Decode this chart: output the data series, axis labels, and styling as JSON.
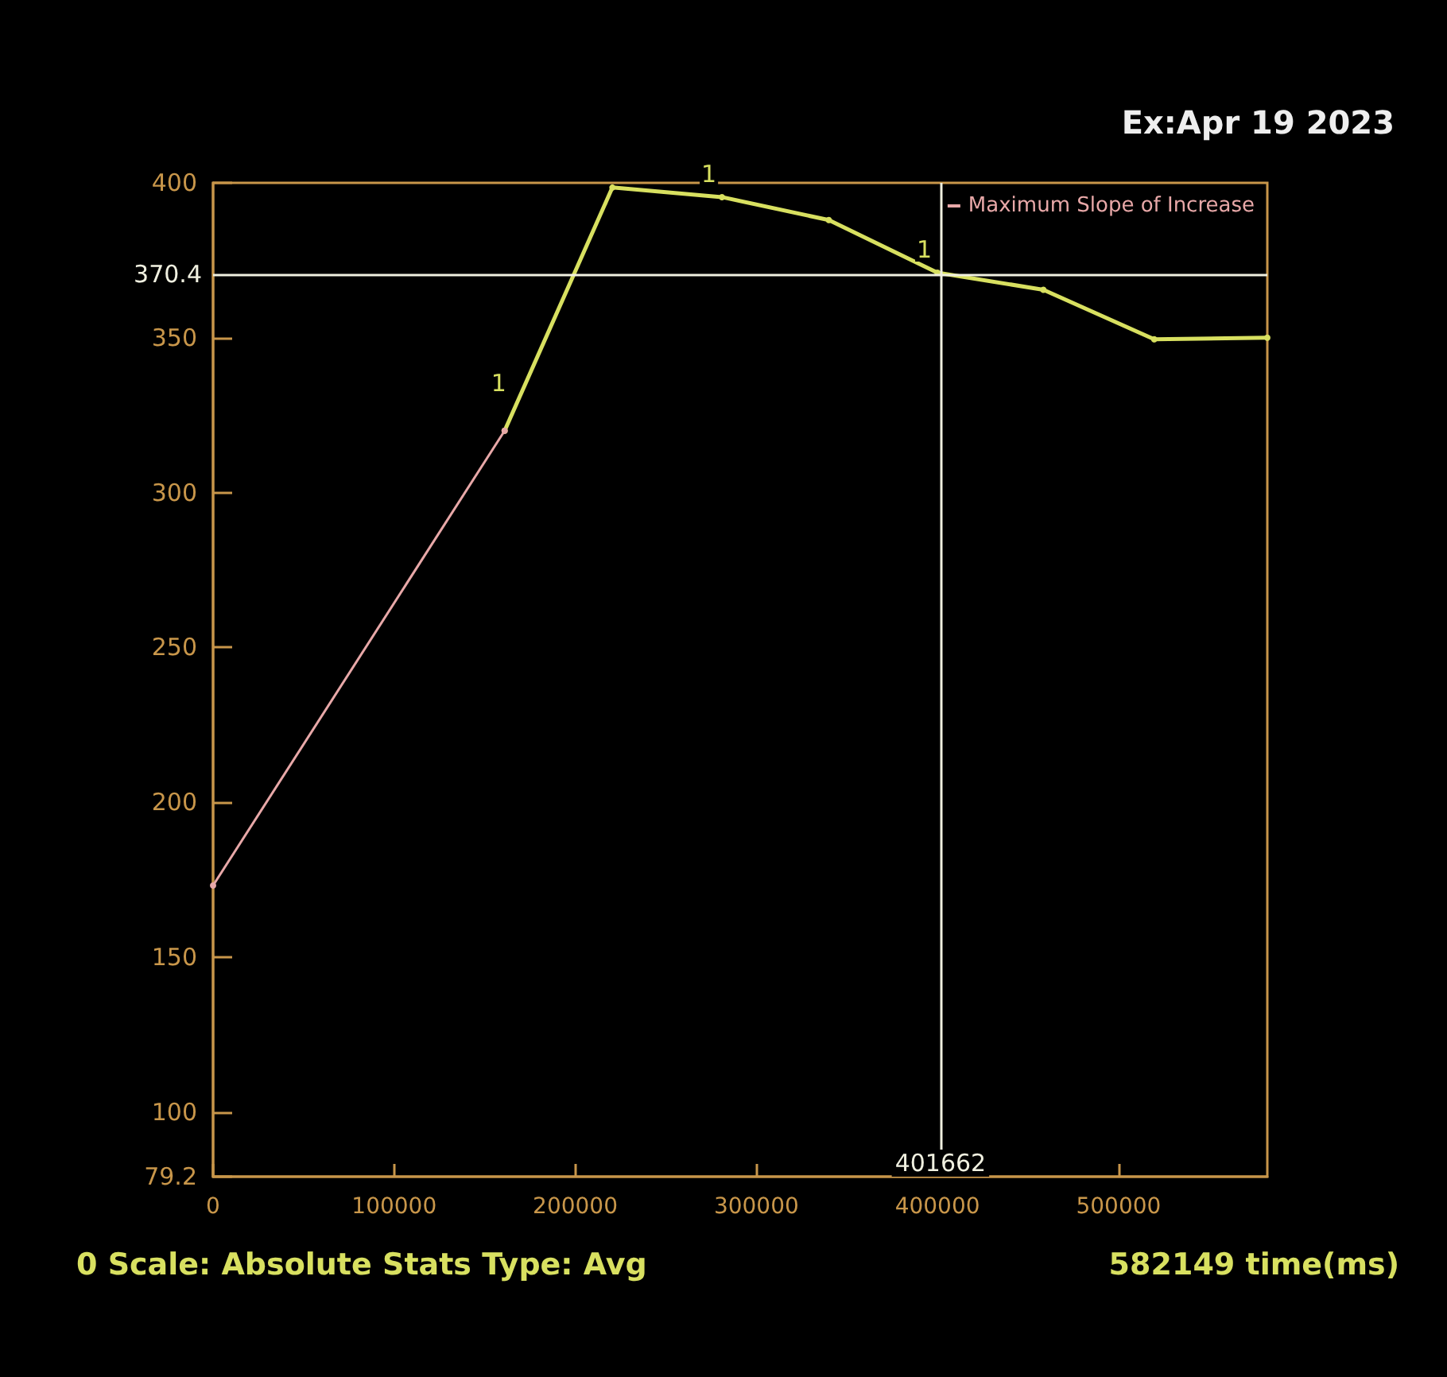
{
  "chart_data": {
    "type": "line",
    "title": "Ex:Apr 19 2023",
    "xlabel": "582149 time(ms)",
    "annotations": [
      "0 Scale: Absolute Stats Type: Avg",
      {
        "text": "1",
        "x": 281000,
        "y": 395.4
      },
      {
        "text": "1",
        "x": 400000,
        "y": 371
      },
      {
        "text": "1",
        "x": 165000,
        "y": 328
      }
    ],
    "series": [
      {
        "color": "#d8e060",
        "x": [
          161000,
          220500,
          281000,
          340000,
          400000,
          458500,
          519700,
          582149
        ],
        "values": [
          320,
          398.5,
          395.4,
          388,
          371,
          365.5,
          349.5,
          350
        ]
      },
      {
        "name": "Maximum Slope of Increase",
        "color": "#e8a8a8",
        "x": [
          0,
          161000
        ],
        "values": [
          173.2,
          320
        ]
      }
    ],
    "xlim": [
      0,
      582149
    ],
    "xticks": [
      0,
      100000,
      200000,
      300000,
      400000,
      500000
    ],
    "ylim": [
      79.2,
      400
    ],
    "yticks": [
      {
        "value": 79.2,
        "label": "79.2"
      },
      100,
      150,
      200,
      250,
      300,
      350,
      400
    ],
    "ref_lines": [
      {
        "axis": "y",
        "value": 370.4,
        "label": "370.4",
        "color": "#f0f0e0"
      },
      {
        "axis": "x",
        "value": 401662,
        "label": "401662",
        "color": "#f0f0e0"
      }
    ],
    "legend": "top right",
    "marker": "circle",
    "line_style": "solid"
  }
}
